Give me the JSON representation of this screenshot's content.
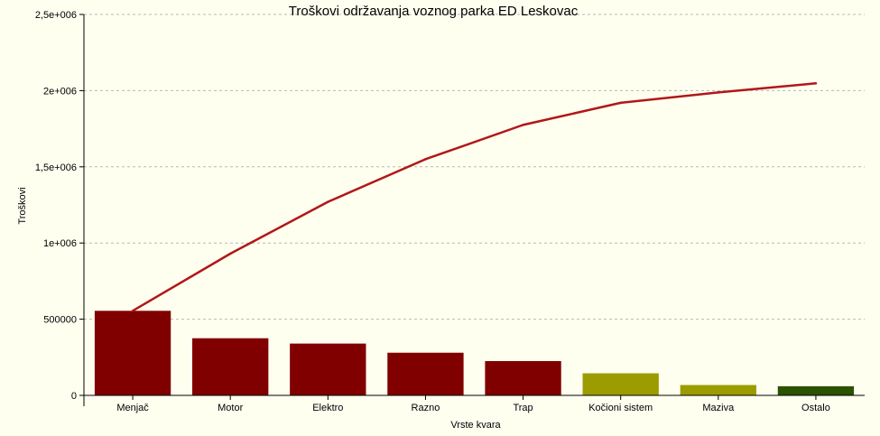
{
  "chart_data": {
    "type": "bar",
    "title": "Troškovi održavanja voznog parka ED Leskovac",
    "xlabel": "Vrste kvara",
    "ylabel": "Troškovi",
    "ylim": [
      0,
      2500000
    ],
    "y_ticks": [
      0,
      500000,
      1000000,
      1500000,
      2000000,
      2500000
    ],
    "y_tick_labels": [
      "0",
      "500000",
      "1e+006",
      "1,5e+006",
      "2e+006",
      "2,5e+006"
    ],
    "grid": true,
    "categories": [
      "Menjač",
      "Motor",
      "Elektro",
      "Razno",
      "Trap",
      "Kočioni sistem",
      "Maziva",
      "Ostalo"
    ],
    "series": [
      {
        "kind": "bar",
        "values": [
          555000,
          375000,
          340000,
          280000,
          225000,
          145000,
          68000,
          60000
        ],
        "colors": [
          "#800000",
          "#800000",
          "#800000",
          "#800000",
          "#800000",
          "#9c9c00",
          "#9c9c00",
          "#2a5200"
        ]
      },
      {
        "kind": "line",
        "values": [
          555000,
          930000,
          1270000,
          1550000,
          1775000,
          1920000,
          1988000,
          2048000
        ],
        "color": "#b01818"
      }
    ]
  }
}
